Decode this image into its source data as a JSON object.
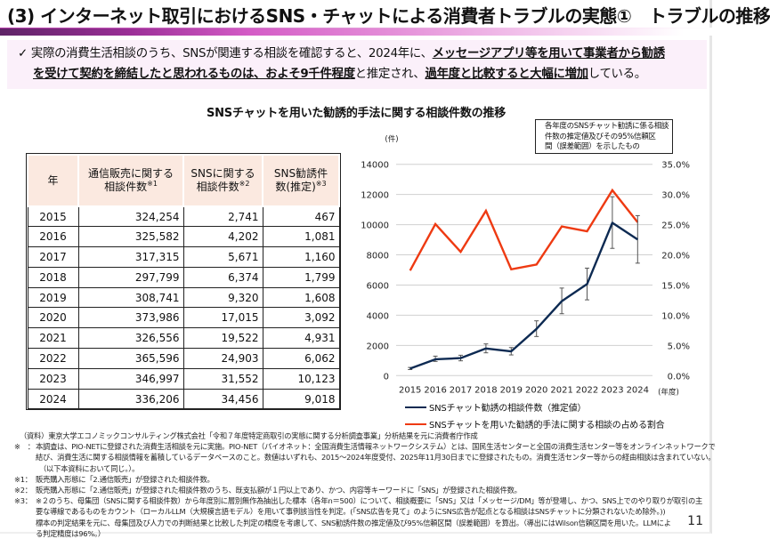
{
  "header": {
    "title": "(3) インターネット取引におけるSNS・チャットによる消費者トラブルの実態①　トラブルの推移"
  },
  "summary": {
    "check_icon": "✓",
    "line1_a": "実際の消費生活相談のうち、SNSが関連する相談を確認すると、2024年に、",
    "line1_u": "メッセージアプリ等を用いて事業者から勧誘",
    "line2_u1": "を受けて契約を締結したと思われるものは、およそ9千件程度",
    "line2_b": "と推定され、",
    "line2_u2": "過年度と比較すると大幅に増加",
    "line2_c": "している。"
  },
  "chart_title": "SNSチャットを用いた勧誘的手法に関する相談件数の推移",
  "table": {
    "headers": [
      "年",
      "通信販売に関する\n相談件数",
      "SNSに関する\n相談件数",
      "SNS勧誘件\n数(推定)"
    ],
    "header_parts": [
      {
        "l1": "年",
        "l2": "",
        "sup": ""
      },
      {
        "l1": "通信販売に関する",
        "l2": "相談件数",
        "sup": "※1"
      },
      {
        "l1": "SNSに関する",
        "l2": "相談件数",
        "sup": "※2"
      },
      {
        "l1": "SNS勧誘件",
        "l2": "数(推定)",
        "sup": "※3"
      }
    ],
    "rows": [
      [
        "2015",
        "324,254",
        "2,741",
        "467"
      ],
      [
        "2016",
        "325,582",
        "4,202",
        "1,081"
      ],
      [
        "2017",
        "317,315",
        "5,671",
        "1,160"
      ],
      [
        "2018",
        "297,799",
        "6,374",
        "1,799"
      ],
      [
        "2019",
        "308,741",
        "9,320",
        "1,608"
      ],
      [
        "2020",
        "373,986",
        "17,015",
        "3,092"
      ],
      [
        "2021",
        "326,556",
        "19,522",
        "4,931"
      ],
      [
        "2022",
        "365,596",
        "24,903",
        "6,062"
      ],
      [
        "2023",
        "346,997",
        "31,552",
        "10,123"
      ],
      [
        "2024",
        "336,206",
        "34,456",
        "9,018"
      ]
    ]
  },
  "chart_data": {
    "type": "line",
    "title": "SNSチャットを用いた勧誘的手法に関する相談件数の推移",
    "x": [
      "2015",
      "2016",
      "2017",
      "2018",
      "2019",
      "2020",
      "2021",
      "2022",
      "2023",
      "2024"
    ],
    "xlabel": "(年度)",
    "ylabel_left": "(件)",
    "ylim_left": [
      0,
      14000
    ],
    "yticks_left": [
      "0",
      "2000",
      "4000",
      "6000",
      "8000",
      "10000",
      "12000",
      "14000"
    ],
    "ylim_right": [
      0,
      35
    ],
    "yticks_right": [
      "0.0%",
      "5.0%",
      "10.0%",
      "15.0%",
      "20.0%",
      "25.0%",
      "30.0%",
      "35.0%"
    ],
    "grid": true,
    "annotation": "各年度のSNSチャット勧誘に係る相談件数の推定値及びその95%信頼区間（誤差範囲）を示したもの",
    "annotation_lines": [
      "各年度のSNSチャット勧誘に係る相談",
      "件数の推定値及びその95%信頼区",
      "間（誤差範囲）を示したもの"
    ],
    "legend_position": "bottom",
    "series": [
      {
        "name": "SNSチャット勧誘の相談件数（推定値）",
        "axis": "left",
        "color": "#0d2a52",
        "values": [
          467,
          1081,
          1160,
          1799,
          1608,
          3092,
          4931,
          6062,
          10123,
          9018
        ],
        "ci_low": [
          400,
          940,
          980,
          1510,
          1370,
          2590,
          4100,
          5020,
          8430,
          7450
        ],
        "ci_high": [
          540,
          1290,
          1350,
          2100,
          1860,
          3630,
          5800,
          7120,
          11850,
          10600
        ]
      },
      {
        "name": "SNSチャットを用いた勧誘的手法に関する相談の占める割合",
        "axis": "right",
        "unit": "%",
        "color": "#ee3a12",
        "values": [
          17.4,
          25.1,
          20.5,
          27.3,
          17.6,
          18.4,
          24.7,
          23.9,
          30.7,
          25.4
        ]
      }
    ]
  },
  "footnotes": {
    "source": "（資料）東京大学エコノミックコンサルティング株式会社「令和７年度特定商取引の実態に関する分析調査事業」分析結果を元に消費者庁作成",
    "notes": [
      {
        "mark": "※　：",
        "lines": [
          "本調査は、PIO-NETに登録された消費生活相談を元に実施。PIO-NET（パイオネット：全国消費生活情報ネットワークシステム）とは、国民生活センターと全国の消費生活センター等をオンラインネットワークで",
          "結び、消費生活に関する相談情報を蓄積しているデータベースのこと。数値はいずれも、2015～2024年度受付、2025年11月30日までに登録されたもの。消費生活センター等からの経由相談は含まれていない。",
          "（以下本資料において同じ。）。"
        ]
      },
      {
        "mark": "※1：",
        "lines": [
          "販売購入形態に「2.通信販売」が登録された相談件数。"
        ]
      },
      {
        "mark": "※2：",
        "lines": [
          "販売購入形態に「2.通信販売」が登録された相談件数のうち、既支払額が１円以上であり、かつ、内容等キーワードに「SNS」が登録された相談件数。"
        ]
      },
      {
        "mark": "※3：",
        "lines": [
          "※２のうち、母集団（SNSに関する相談件数）から年度別に層別無作為抽出した標本（各年n＝500）について、相談概要に「SNS」又は「メッセージ/DM」等が登場し、かつ、SNS上でのやり取りが取引の主",
          "要な導線であるものをカウント（ローカルLLM（大規模言語モデル）を用いて事例該当性を判定。(「SNS広告を見て」のようにSNS広告が起点となる相談はSNSチャットに分類されないため除外。))",
          "標本の判定結果を元に、母集団及び人力での判断結果と比較した判定の精度を考慮して、SNS勧誘件数の推定値及び95%信頼区間（誤差範囲）を算出。（導出にはWilson信頼区間を用いた。LLMによ",
          "る判定精度は96%。）"
        ]
      }
    ]
  },
  "page_number": "11"
}
